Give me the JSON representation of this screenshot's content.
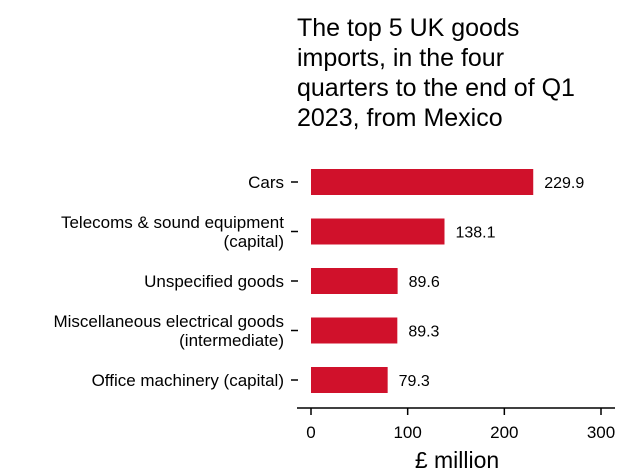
{
  "chart_data": {
    "type": "bar",
    "orientation": "horizontal",
    "title": "The top 5 UK goods imports, in the four quarters to the end of Q1 2023, from Mexico",
    "title_lines": [
      "The top 5 UK goods",
      "imports, in the four",
      "quarters to the end of Q1",
      "2023, from Mexico"
    ],
    "xlabel": "£ million",
    "ylabel": "",
    "xlim": [
      0,
      300
    ],
    "xticks": [
      0,
      100,
      200,
      300
    ],
    "grid": false,
    "bar_color": "#d0112b",
    "categories": [
      [
        "Cars"
      ],
      [
        "Telecoms & sound equipment",
        "(capital)"
      ],
      [
        "Unspecified goods"
      ],
      [
        "Miscellaneous electrical goods",
        "(intermediate)"
      ],
      [
        "Office machinery (capital)"
      ]
    ],
    "values": [
      229.9,
      138.1,
      89.6,
      89.3,
      79.3
    ],
    "value_labels": [
      "229.9",
      "138.1",
      "89.6",
      "89.3",
      "79.3"
    ]
  }
}
